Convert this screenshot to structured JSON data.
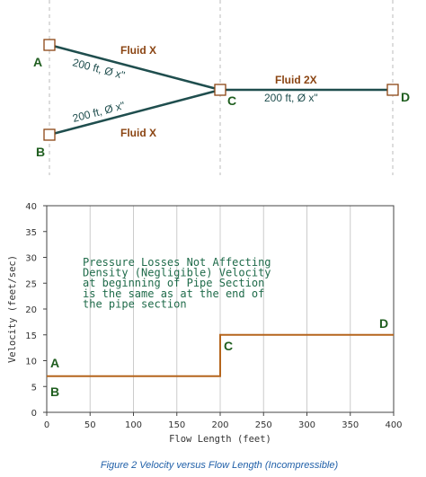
{
  "colors": {
    "pipe": "#1f4e4e",
    "node_border": "#8b4513",
    "fluid_label": "#8b4513",
    "node_label": "#1f5e1f",
    "guide": "#bbbbbb",
    "velocity_line": "#b5651d",
    "annotation": "#1f6b4a",
    "grid": "#cccccc",
    "caption": "#1f5fa8"
  },
  "pipe_diagram": {
    "nodes": [
      {
        "id": "A",
        "label": "A"
      },
      {
        "id": "B",
        "label": "B"
      },
      {
        "id": "C",
        "label": "C"
      },
      {
        "id": "D",
        "label": "D"
      }
    ],
    "pipes": [
      {
        "from": "A",
        "to": "C",
        "fluid": "Fluid X",
        "spec": "200 ft, Ø x\""
      },
      {
        "from": "B",
        "to": "C",
        "fluid": "Fluid X",
        "spec": "200 ft, Ø x\""
      },
      {
        "from": "C",
        "to": "D",
        "fluid": "Fluid 2X",
        "spec": "200 ft, Ø x\""
      }
    ]
  },
  "chart_data": {
    "type": "line",
    "title": "",
    "xlabel": "Flow Length (feet)",
    "ylabel": "Velocity (feet/sec)",
    "xlim": [
      0,
      400
    ],
    "ylim": [
      0,
      40
    ],
    "xticks": [
      0,
      50,
      100,
      150,
      200,
      250,
      300,
      350,
      400
    ],
    "yticks": [
      0,
      5,
      10,
      15,
      20,
      25,
      30,
      35,
      40
    ],
    "grid": "vertical",
    "series": [
      {
        "values": [
          [
            0,
            7
          ],
          [
            200,
            7
          ],
          [
            200,
            15
          ],
          [
            400,
            15
          ]
        ]
      }
    ],
    "annotation_lines": [
      "Pressure Losses Not Affecting",
      "Density (Negligible) Velocity",
      "at beginning of Pipe Section",
      "is the same as at the end of",
      "the pipe section"
    ],
    "point_labels": [
      {
        "label": "A",
        "x": 0,
        "y": 7,
        "pos": "above"
      },
      {
        "label": "B",
        "x": 0,
        "y": 7,
        "pos": "below"
      },
      {
        "label": "C",
        "x": 200,
        "y": 15,
        "pos": "below-right"
      },
      {
        "label": "D",
        "x": 400,
        "y": 15,
        "pos": "above-left"
      }
    ]
  },
  "caption": "Figure 2 Velocity versus Flow Length (Incompressible)"
}
